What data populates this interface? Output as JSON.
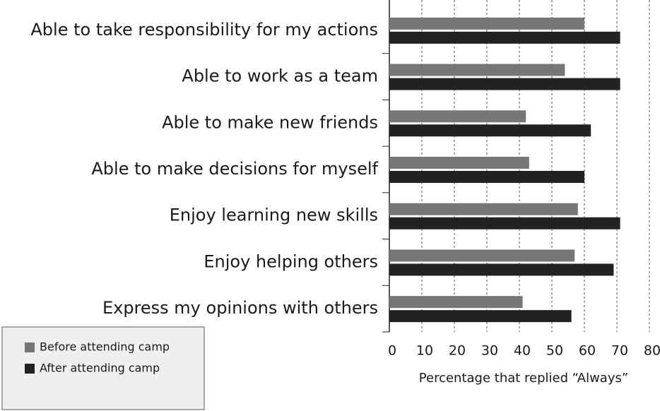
{
  "chart_data": {
    "type": "barh",
    "categories": [
      "Able to take responsibility for my actions",
      "Able to work as a team",
      "Able to make new friends",
      "Able to make decisions for myself",
      "Enjoy learning new skills",
      "Enjoy helping others",
      "Express my opinions with others"
    ],
    "series": [
      {
        "name": "Before attending camp",
        "color": "#777777",
        "values": [
          60,
          54,
          42,
          43,
          58,
          57,
          41
        ]
      },
      {
        "name": "After attending camp",
        "color": "#222222",
        "values": [
          71,
          71,
          62,
          60,
          71,
          69,
          56
        ]
      }
    ],
    "xlabel": "Percentage that replied “Always”",
    "xlim": [
      0,
      80
    ],
    "xticks": [
      0,
      10,
      20,
      30,
      40,
      50,
      60,
      70,
      80
    ],
    "grid": true,
    "legend": "lower left"
  }
}
